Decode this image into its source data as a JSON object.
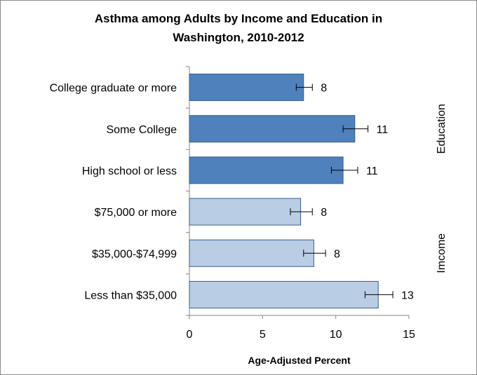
{
  "chart_data": {
    "type": "bar",
    "orientation": "horizontal",
    "title_lines": [
      "Asthma among Adults by Income and Education in",
      "Washington, 2010-2012"
    ],
    "xlabel": "Age-Adjusted Percent",
    "ylabel": "",
    "xlim": [
      0,
      15
    ],
    "x_ticks": [
      "0",
      "5",
      "10",
      "15"
    ],
    "categories": [
      "College graduate or more",
      "Some College",
      "High school or less",
      "$75,000 or more",
      "$35,000-$74,999",
      "Less than $35,000"
    ],
    "values": [
      7.8,
      11.3,
      10.5,
      7.6,
      8.5,
      12.9
    ],
    "error_low": [
      7.3,
      10.5,
      9.7,
      6.9,
      7.8,
      12.0
    ],
    "error_high": [
      8.4,
      12.2,
      11.5,
      8.4,
      9.3,
      13.9
    ],
    "data_labels": [
      "8",
      "11",
      "11",
      "8",
      "8",
      "13"
    ],
    "groups": [
      {
        "name": "Education",
        "categories": [
          "College graduate or more",
          "Some College",
          "High school or less"
        ],
        "color": "#4f81bd"
      },
      {
        "name": "Imcome",
        "categories": [
          "$75,000 or more",
          "$35,000-$74,999",
          "Less than $35,000"
        ],
        "color": "#b9cde5"
      }
    ],
    "grid": false,
    "legend": "none"
  },
  "colors": {
    "education_bar": "#4f81bd",
    "income_bar": "#b9cde5",
    "bar_outline": "#385d8a",
    "axis": "#868686",
    "frame_border": "#8c8c8c"
  }
}
